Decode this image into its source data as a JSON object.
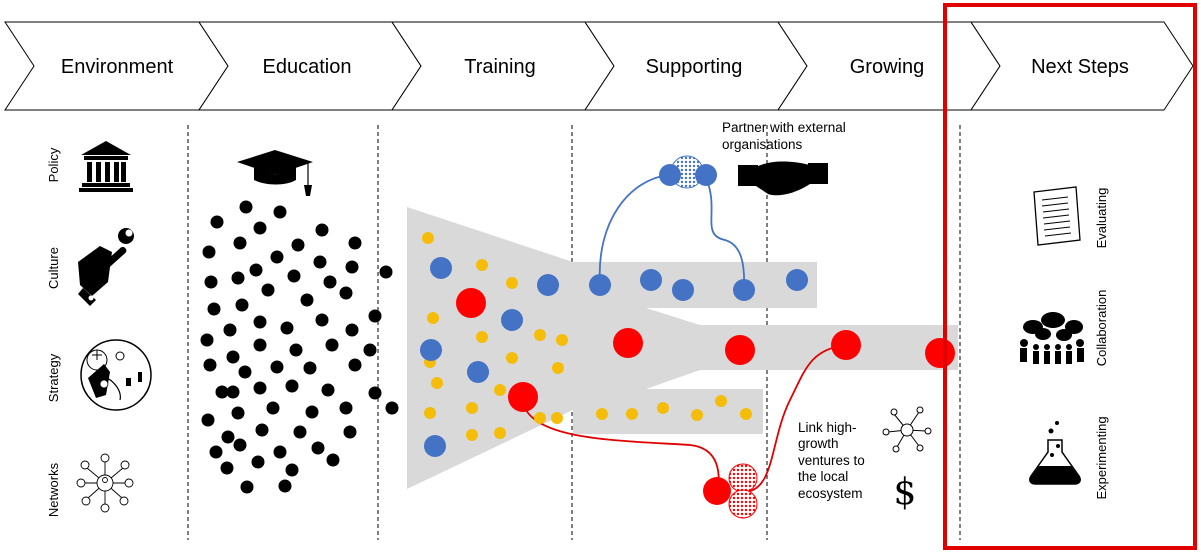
{
  "stages": [
    {
      "label": "Environment"
    },
    {
      "label": "Education"
    },
    {
      "label": "Training"
    },
    {
      "label": "Supporting"
    },
    {
      "label": "Growing"
    },
    {
      "label": "Next Steps"
    }
  ],
  "environment_items": [
    {
      "label": "Policy",
      "icon": "government-building-icon"
    },
    {
      "label": "Culture",
      "icon": "hand-wrench-icon"
    },
    {
      "label": "Strategy",
      "icon": "chess-strategy-icon"
    },
    {
      "label": "Networks",
      "icon": "network-people-icon"
    }
  ],
  "next_steps_items": [
    {
      "label": "Evaluating",
      "icon": "document-checklist-icon"
    },
    {
      "label": "Collaboration",
      "icon": "people-speech-bubbles-icon"
    },
    {
      "label": "Experimenting",
      "icon": "flask-icon"
    }
  ],
  "annotations": {
    "partner": [
      "Partner with external",
      "organisations"
    ],
    "link": [
      "Link high-",
      "growth",
      "ventures to",
      "the local",
      "ecosystem"
    ]
  },
  "icons": {
    "education": "graduation-cap-icon",
    "partner": "handshake-icon",
    "network": "network-icon",
    "money": "dollar-icon",
    "currency": "$"
  },
  "colors": {
    "black_dot": "#000000",
    "yellow_dot": "#f5bd0a",
    "blue_dot": "#4472c4",
    "red_dot": "#ff0000",
    "funnel_gray": "#d9d9d9",
    "blue_connector": "#4472c4",
    "red_connector": "#e00000",
    "highlight_box": "#e00000"
  }
}
